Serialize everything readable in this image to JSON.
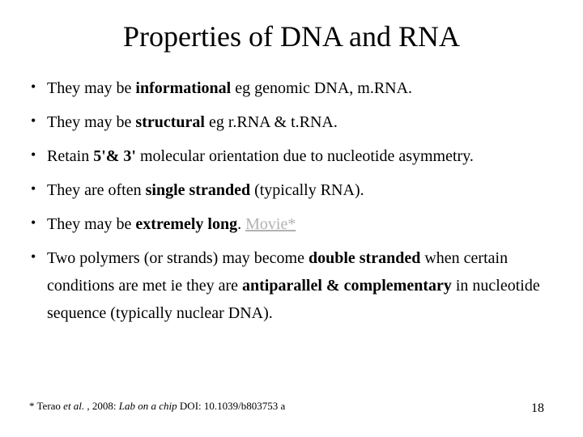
{
  "slide": {
    "title": "Properties of DNA and RNA",
    "bullets": [
      {
        "parts": [
          {
            "text": "They may be ",
            "bold": false
          },
          {
            "text": "informational",
            "bold": true
          },
          {
            "text": " eg genomic DNA, m.RNA.",
            "bold": false
          }
        ]
      },
      {
        "parts": [
          {
            "text": "They may be ",
            "bold": false
          },
          {
            "text": "structural",
            "bold": true
          },
          {
            "text": " eg r.RNA & t.RNA.",
            "bold": false
          }
        ]
      },
      {
        "parts": [
          {
            "text": "Retain ",
            "bold": false
          },
          {
            "text": "5'& 3'",
            "bold": true
          },
          {
            "text": " molecular orientation due to nucleotide asymmetry.",
            "bold": false
          }
        ]
      },
      {
        "parts": [
          {
            "text": "They are often ",
            "bold": false
          },
          {
            "text": "single stranded",
            "bold": true
          },
          {
            "text": " (typically RNA).",
            "bold": false
          }
        ]
      },
      {
        "parts": [
          {
            "text": "They may be ",
            "bold": false
          },
          {
            "text": "extremely long",
            "bold": true
          },
          {
            "text": ".  ",
            "bold": false
          },
          {
            "text": "Movie*",
            "link": true
          }
        ]
      },
      {
        "parts": [
          {
            "text": "Two polymers (or strands) may become ",
            "bold": false
          },
          {
            "text": "double stranded",
            "bold": true
          },
          {
            "text": " when certain conditions are met ie they are ",
            "bold": false
          },
          {
            "text": "antiparallel & complementary",
            "bold": true
          },
          {
            "text": " in nucleotide sequence (typically nuclear DNA).",
            "bold": false
          }
        ]
      }
    ],
    "footnote": {
      "prefix": "* Terao ",
      "italic1": "et al.",
      "mid": " , 2008: ",
      "italic2": "Lab on a chip",
      "suffix": " DOI: 10.1039/b803753 a"
    },
    "page_number": "18"
  },
  "style": {
    "background_color": "#ffffff",
    "text_color": "#000000",
    "link_color": "#b2b2b2",
    "title_fontsize": 36,
    "bullet_fontsize": 20,
    "footnote_fontsize": 13,
    "pagenum_fontsize": 16
  }
}
